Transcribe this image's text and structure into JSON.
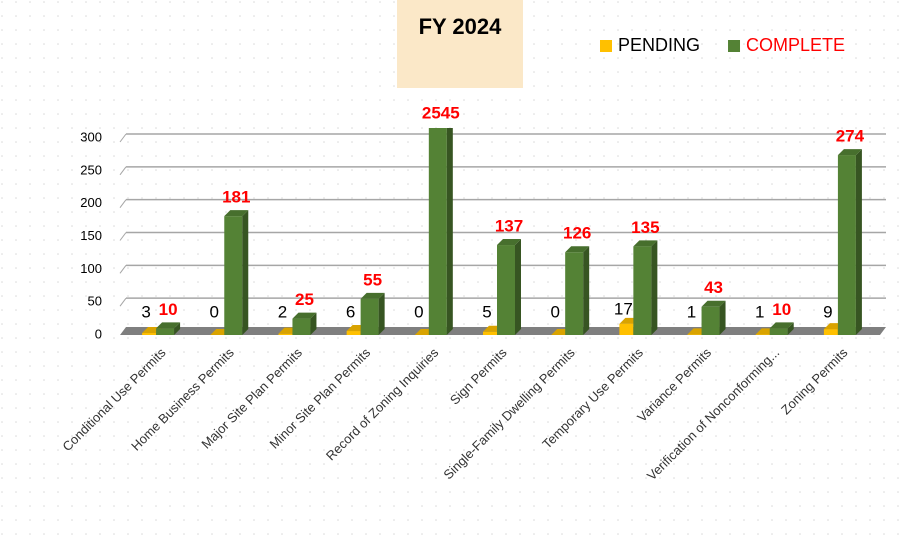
{
  "chart_data": {
    "type": "bar3d",
    "title": "FY 2024",
    "categories": [
      "Conditional Use Permits",
      "Home Business Permits",
      "Major Site Plan Permits",
      "Minor Site Plan Permits",
      "Record of Zoning Inquiries",
      "Sign Permits",
      "Single-Family Dwelling Permits",
      "Temporary Use Permits",
      "Variance Permits",
      "Verification of Nonconforming...",
      "Zoning Permits"
    ],
    "series": [
      {
        "name": "PENDING",
        "color": "#ffc000",
        "values": [
          3,
          0,
          2,
          6,
          0,
          5,
          0,
          17,
          1,
          1,
          9
        ]
      },
      {
        "name": "COMPLETE",
        "color": "#548235",
        "values": [
          10,
          181,
          25,
          55,
          2545,
          137,
          126,
          135,
          43,
          10,
          274
        ]
      }
    ],
    "ylim": [
      0,
      300
    ],
    "yticks": [
      0,
      50,
      100,
      150,
      200,
      250,
      300
    ],
    "grid": true,
    "legend": "top-right"
  }
}
